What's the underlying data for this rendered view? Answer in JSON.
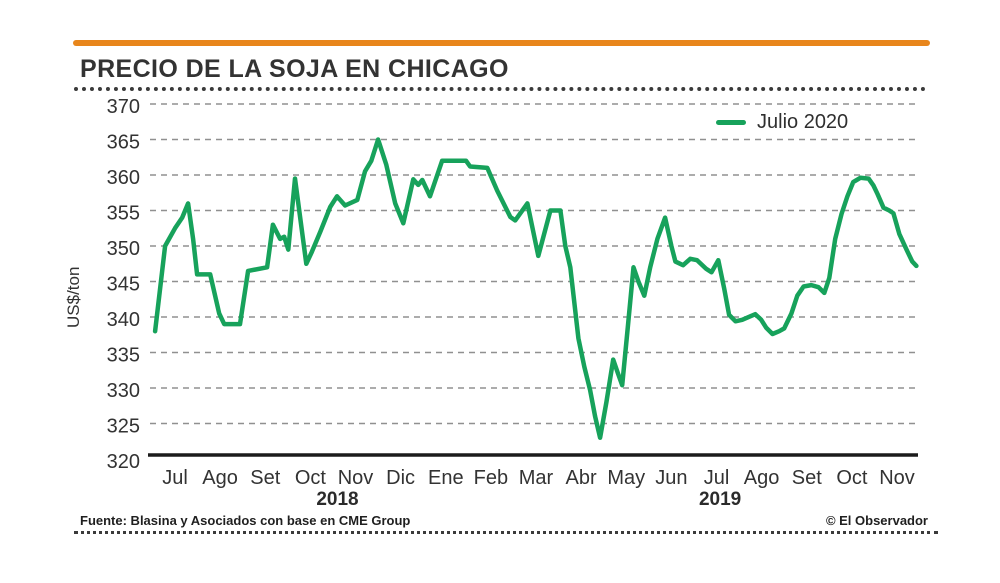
{
  "header": {
    "title": "PRECIO DE LA SOJA EN CHICAGO"
  },
  "legend": {
    "label": "Julio 2020"
  },
  "footer": {
    "source": "Fuente: Blasina y Asociados con base en CME Group",
    "credit": "© El Observador"
  },
  "colors": {
    "accent_orange": "#E8861C",
    "line_green": "#17A25B",
    "grid_gray": "#909090",
    "axis_black": "#1B1B1B",
    "text_dark": "#333333"
  },
  "chart_data": {
    "type": "line",
    "title": "PRECIO DE LA SOJA EN CHICAGO",
    "xlabel": "",
    "ylabel": "US$/ton",
    "ylim": [
      320,
      370
    ],
    "yticks": [
      370,
      365,
      360,
      355,
      350,
      345,
      340,
      335,
      330,
      325,
      320
    ],
    "grid": "dashed-horizontal",
    "legend_position": "top-right",
    "xticks": [
      "Jul",
      "Ago",
      "Set",
      "Oct",
      "Nov",
      "Dic",
      "Ene",
      "Feb",
      "Mar",
      "Abr",
      "May",
      "Jun",
      "Jul",
      "Ago",
      "Set",
      "Oct",
      "Nov"
    ],
    "years": [
      {
        "label": "2018",
        "month_index": 3.6
      },
      {
        "label": "2019",
        "month_index": 12.08
      }
    ],
    "series": [
      {
        "name": "Julio 2020",
        "color": "#17A25B",
        "x_unit": "month-index (0 = Jul 2018 tick, 16 = Nov 2019 tick)",
        "points": [
          [
            -0.44,
            338
          ],
          [
            -0.22,
            350
          ],
          [
            0.0,
            352.5
          ],
          [
            0.16,
            354
          ],
          [
            0.29,
            356
          ],
          [
            0.4,
            351
          ],
          [
            0.49,
            346
          ],
          [
            0.78,
            346
          ],
          [
            0.98,
            340.5
          ],
          [
            1.09,
            339
          ],
          [
            1.44,
            339
          ],
          [
            1.62,
            346.5
          ],
          [
            2.04,
            347
          ],
          [
            2.17,
            353
          ],
          [
            2.33,
            351
          ],
          [
            2.42,
            351.3
          ],
          [
            2.51,
            349.5
          ],
          [
            2.66,
            359.5
          ],
          [
            2.91,
            347.5
          ],
          [
            3.02,
            349
          ],
          [
            3.22,
            352
          ],
          [
            3.44,
            355.5
          ],
          [
            3.59,
            357
          ],
          [
            3.77,
            355.7
          ],
          [
            4.04,
            356.5
          ],
          [
            4.21,
            360.5
          ],
          [
            4.35,
            362
          ],
          [
            4.5,
            365
          ],
          [
            4.68,
            361.5
          ],
          [
            4.88,
            356
          ],
          [
            5.06,
            353.2
          ],
          [
            5.28,
            359.4
          ],
          [
            5.39,
            358.6
          ],
          [
            5.48,
            359.3
          ],
          [
            5.65,
            357
          ],
          [
            5.92,
            362
          ],
          [
            6.45,
            362
          ],
          [
            6.54,
            361.2
          ],
          [
            6.92,
            361
          ],
          [
            7.14,
            357.8
          ],
          [
            7.43,
            354.1
          ],
          [
            7.54,
            353.6
          ],
          [
            7.81,
            356
          ],
          [
            8.05,
            348.6
          ],
          [
            8.32,
            355
          ],
          [
            8.54,
            355
          ],
          [
            8.65,
            350
          ],
          [
            8.76,
            347
          ],
          [
            8.94,
            337
          ],
          [
            9.07,
            333
          ],
          [
            9.2,
            329.7
          ],
          [
            9.31,
            326
          ],
          [
            9.42,
            323
          ],
          [
            9.56,
            328
          ],
          [
            9.71,
            334
          ],
          [
            9.82,
            332
          ],
          [
            9.91,
            330.4
          ],
          [
            10.04,
            339
          ],
          [
            10.16,
            347
          ],
          [
            10.27,
            345
          ],
          [
            10.4,
            343
          ],
          [
            10.53,
            347
          ],
          [
            10.69,
            351
          ],
          [
            10.86,
            354
          ],
          [
            11.0,
            350
          ],
          [
            11.09,
            347.8
          ],
          [
            11.26,
            347.3
          ],
          [
            11.42,
            348.2
          ],
          [
            11.57,
            348
          ],
          [
            11.77,
            346.8
          ],
          [
            11.89,
            346.3
          ],
          [
            12.04,
            348
          ],
          [
            12.17,
            344
          ],
          [
            12.28,
            340.3
          ],
          [
            12.42,
            339.4
          ],
          [
            12.57,
            339.6
          ],
          [
            12.75,
            340.1
          ],
          [
            12.86,
            340.4
          ],
          [
            12.99,
            339.6
          ],
          [
            13.1,
            338.5
          ],
          [
            13.24,
            337.6
          ],
          [
            13.39,
            338
          ],
          [
            13.5,
            338.4
          ],
          [
            13.66,
            340.5
          ],
          [
            13.79,
            343
          ],
          [
            13.93,
            344.3
          ],
          [
            14.1,
            344.5
          ],
          [
            14.26,
            344.2
          ],
          [
            14.39,
            343.4
          ],
          [
            14.5,
            345.5
          ],
          [
            14.63,
            351
          ],
          [
            14.77,
            354.5
          ],
          [
            14.9,
            357
          ],
          [
            15.03,
            359
          ],
          [
            15.19,
            359.6
          ],
          [
            15.37,
            359.5
          ],
          [
            15.48,
            358.5
          ],
          [
            15.57,
            357.3
          ],
          [
            15.7,
            355.4
          ],
          [
            15.83,
            355
          ],
          [
            15.92,
            354.6
          ],
          [
            16.05,
            351.7
          ],
          [
            16.21,
            349.5
          ],
          [
            16.34,
            347.8
          ],
          [
            16.43,
            347.2
          ]
        ]
      }
    ]
  }
}
